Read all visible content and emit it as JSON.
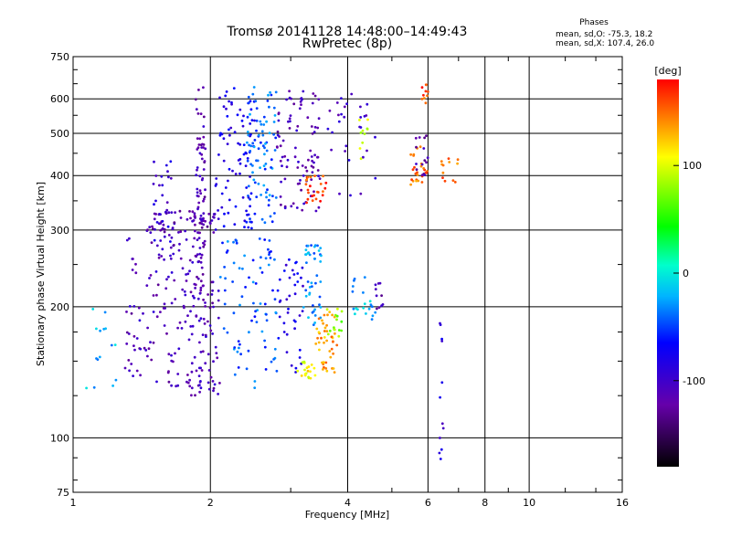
{
  "header": {
    "title": "Tromsø 20141128  14:48:00–14:49:43",
    "subtitle": "RwPretec (8p)",
    "phases_label": "Phases",
    "phases_o": "mean, sd,O: -75.3, 18.2",
    "phases_x": "mean, sd,X: 107.4, 26.0"
  },
  "colorbar": {
    "unit": "[deg]",
    "ticks": [
      {
        "label": "100",
        "value": 100
      },
      {
        "label": "0",
        "value": 0
      },
      {
        "label": "-100",
        "value": -100
      }
    ],
    "range": [
      -180,
      180
    ]
  },
  "chart_data": {
    "type": "scatter",
    "xlabel": "Frequency [MHz]",
    "ylabel": "Stationary phase Virtual Height [km]",
    "x_scale": "log",
    "y_scale": "log",
    "xlim": [
      1,
      16
    ],
    "ylim": [
      75,
      750
    ],
    "x_ticks": [
      {
        "label": "1",
        "value": 1
      },
      {
        "label": "2",
        "value": 2
      },
      {
        "label": "4",
        "value": 4
      },
      {
        "label": "6",
        "value": 6
      },
      {
        "label": "8",
        "value": 8
      },
      {
        "label": "10",
        "value": 10
      },
      {
        "label": "16",
        "value": 16
      }
    ],
    "x_gridlines": [
      2,
      4,
      6,
      8,
      10
    ],
    "y_ticks": [
      {
        "label": "750",
        "value": 750
      },
      {
        "label": "600",
        "value": 600
      },
      {
        "label": "500",
        "value": 500
      },
      {
        "label": "400",
        "value": 400
      },
      {
        "label": "300",
        "value": 300
      },
      {
        "label": "200",
        "value": 200
      },
      {
        "label": "100",
        "value": 100
      },
      {
        "label": "75",
        "value": 75
      }
    ],
    "y_gridlines": [
      600,
      500,
      400,
      300,
      200,
      100
    ],
    "grid": true,
    "color_scale": "rainbow, phase in degrees",
    "clusters": [
      {
        "x_range": [
          1.85,
          1.95
        ],
        "y_range": [
          230,
          640
        ],
        "phase": -115,
        "count": 70
      },
      {
        "x_range": [
          1.45,
          2.05
        ],
        "y_range": [
          295,
          335
        ],
        "phase": -115,
        "count": 60
      },
      {
        "x_range": [
          1.5,
          1.65
        ],
        "y_range": [
          250,
          440
        ],
        "phase": -95,
        "count": 35
      },
      {
        "x_range": [
          2.05,
          2.5
        ],
        "y_range": [
          300,
          640
        ],
        "phase": -80,
        "count": 80
      },
      {
        "x_range": [
          2.4,
          2.8
        ],
        "y_range": [
          310,
          640
        ],
        "phase": -40,
        "count": 90
      },
      {
        "x_range": [
          2.8,
          3.5
        ],
        "y_range": [
          330,
          640
        ],
        "phase": -110,
        "count": 90
      },
      {
        "x_range": [
          3.2,
          3.6
        ],
        "y_range": [
          345,
          400
        ],
        "phase": 160,
        "count": 25
      },
      {
        "x_range": [
          3.6,
          4.6
        ],
        "y_range": [
          360,
          620
        ],
        "phase": -100,
        "count": 30
      },
      {
        "x_range": [
          4.1,
          4.5
        ],
        "y_range": [
          430,
          550
        ],
        "phase": 90,
        "count": 10
      },
      {
        "x_range": [
          5.5,
          6.0
        ],
        "y_range": [
          380,
          470
        ],
        "phase": 150,
        "count": 25
      },
      {
        "x_range": [
          5.6,
          6.0
        ],
        "y_range": [
          400,
          500
        ],
        "phase": -115,
        "count": 15
      },
      {
        "x_range": [
          5.8,
          6.0
        ],
        "y_range": [
          580,
          650
        ],
        "phase": 160,
        "count": 10
      },
      {
        "x_range": [
          6.4,
          7.0
        ],
        "y_range": [
          380,
          440
        ],
        "phase": 150,
        "count": 12
      },
      {
        "x_range": [
          1.05,
          1.25
        ],
        "y_range": [
          130,
          200
        ],
        "phase": -20,
        "count": 15
      },
      {
        "x_range": [
          1.3,
          2.0
        ],
        "y_range": [
          130,
          290
        ],
        "phase": -110,
        "count": 140
      },
      {
        "x_range": [
          1.8,
          2.1
        ],
        "y_range": [
          125,
          230
        ],
        "phase": -110,
        "count": 60
      },
      {
        "x_range": [
          2.1,
          2.8
        ],
        "y_range": [
          130,
          290
        ],
        "phase": -45,
        "count": 80
      },
      {
        "x_range": [
          2.8,
          3.2
        ],
        "y_range": [
          140,
          260
        ],
        "phase": -80,
        "count": 40
      },
      {
        "x_range": [
          3.2,
          3.5
        ],
        "y_range": [
          180,
          280
        ],
        "phase": -30,
        "count": 45
      },
      {
        "x_range": [
          3.1,
          3.4
        ],
        "y_range": [
          137,
          150
        ],
        "phase": 110,
        "count": 20
      },
      {
        "x_range": [
          3.4,
          3.8
        ],
        "y_range": [
          140,
          195
        ],
        "phase": 135,
        "count": 45
      },
      {
        "x_range": [
          3.6,
          3.9
        ],
        "y_range": [
          170,
          200
        ],
        "phase": 80,
        "count": 15
      },
      {
        "x_range": [
          4.1,
          4.6
        ],
        "y_range": [
          185,
          235
        ],
        "phase": -20,
        "count": 20
      },
      {
        "x_range": [
          4.55,
          4.8
        ],
        "y_range": [
          195,
          230
        ],
        "phase": -115,
        "count": 10
      },
      {
        "x_range": [
          6.35,
          6.5
        ],
        "y_range": [
          80,
          190
        ],
        "phase": -90,
        "count": 12
      }
    ]
  }
}
